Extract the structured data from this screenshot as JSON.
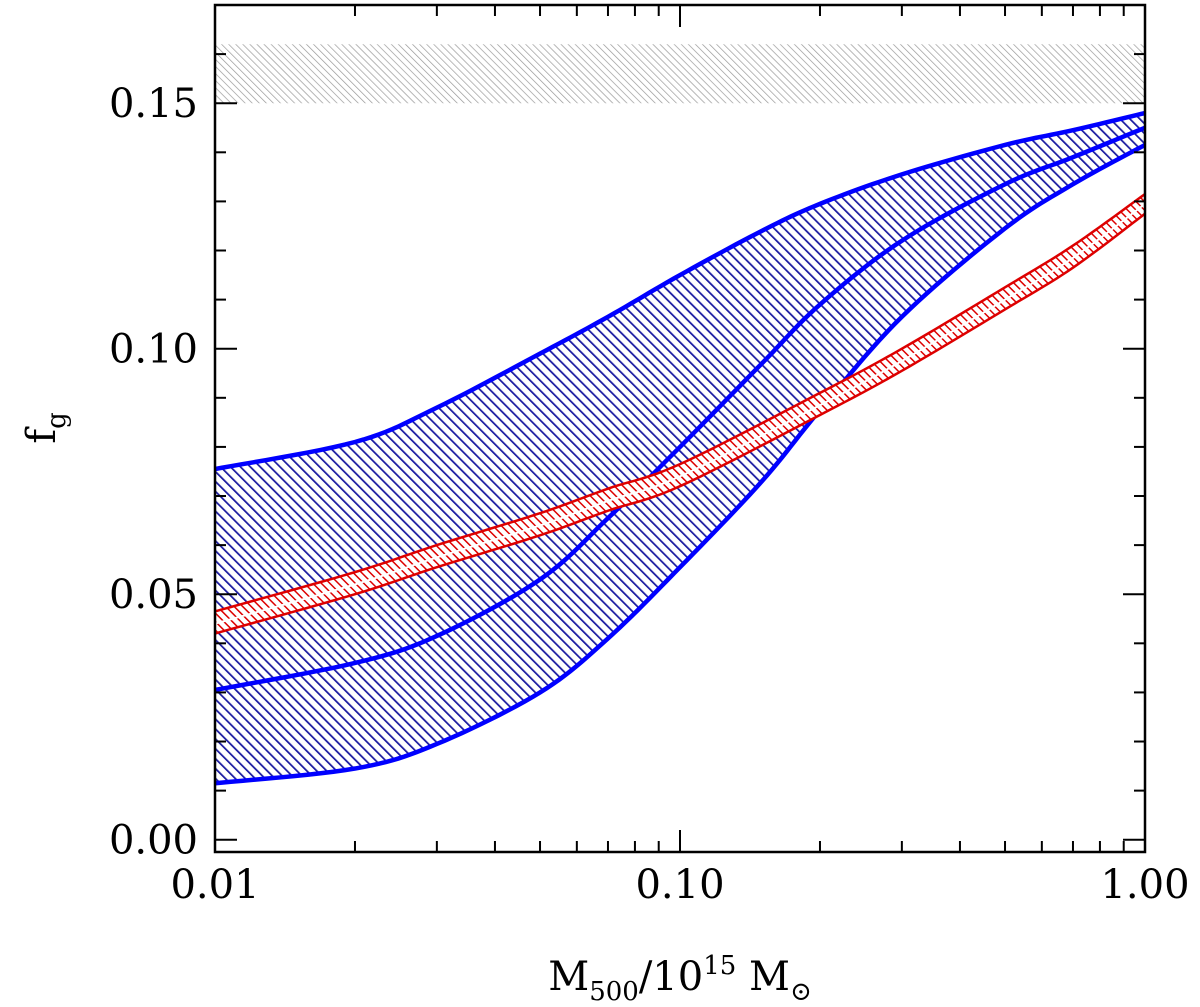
{
  "chart_data": {
    "type": "area",
    "title": "",
    "xlabel": {
      "main": "M",
      "sub": "500",
      "mid": "/10",
      "sup": "15",
      "unit": " M",
      "unit_sub": "⊙"
    },
    "ylabel": {
      "main": "f",
      "sub": "g"
    },
    "x_scale": "log",
    "xlim": [
      0.01,
      1.0
    ],
    "ylim": [
      -0.0025,
      0.17
    ],
    "x_ticks": [
      {
        "value": 0.01,
        "label": "0.01"
      },
      {
        "value": 0.1,
        "label": "0.10"
      },
      {
        "value": 1.0,
        "label": "1.00"
      }
    ],
    "y_ticks": [
      {
        "value": 0.0,
        "label": "0.00"
      },
      {
        "value": 0.05,
        "label": "0.05"
      },
      {
        "value": 0.1,
        "label": "0.10"
      },
      {
        "value": 0.15,
        "label": "0.15"
      }
    ],
    "y_minor_step": 0.01,
    "grid": false,
    "legend": "none",
    "colors": {
      "blue_band": "#1a1aa0",
      "blue_line": "#0000ff",
      "red_band": "#dd0000",
      "gray_band": "#999999"
    },
    "bands": [
      {
        "color": "gray",
        "x": [
          0.01,
          1.0
        ],
        "lower": [
          0.15,
          0.15
        ],
        "upper": [
          0.162,
          0.162
        ]
      },
      {
        "color": "blue",
        "x": [
          0.01,
          0.02,
          0.03,
          0.05,
          0.07,
          0.1,
          0.15,
          0.2,
          0.3,
          0.5,
          0.7,
          1.0
        ],
        "upper": [
          0.0755,
          0.081,
          0.088,
          0.099,
          0.1065,
          0.115,
          0.124,
          0.1295,
          0.1355,
          0.1415,
          0.1445,
          0.148
        ],
        "middle": [
          0.0305,
          0.036,
          0.0415,
          0.053,
          0.0655,
          0.08,
          0.097,
          0.109,
          0.122,
          0.1335,
          0.139,
          0.145
        ],
        "lower": [
          0.0115,
          0.0145,
          0.0195,
          0.03,
          0.041,
          0.0555,
          0.073,
          0.0875,
          0.1065,
          0.1245,
          0.1335,
          0.1415
        ]
      },
      {
        "color": "red",
        "x": [
          0.01,
          0.02,
          0.03,
          0.05,
          0.07,
          0.1,
          0.2,
          0.3,
          0.5,
          0.7,
          1.0
        ],
        "upper": [
          0.0465,
          0.0545,
          0.06,
          0.0665,
          0.0715,
          0.0765,
          0.091,
          0.1,
          0.1125,
          0.121,
          0.1315
        ],
        "middle": [
          0.044,
          0.052,
          0.0575,
          0.064,
          0.069,
          0.074,
          0.0885,
          0.0975,
          0.11,
          0.1185,
          0.1295
        ],
        "lower": [
          0.042,
          0.05,
          0.0555,
          0.062,
          0.067,
          0.072,
          0.0865,
          0.0955,
          0.108,
          0.1165,
          0.1275
        ]
      }
    ]
  }
}
